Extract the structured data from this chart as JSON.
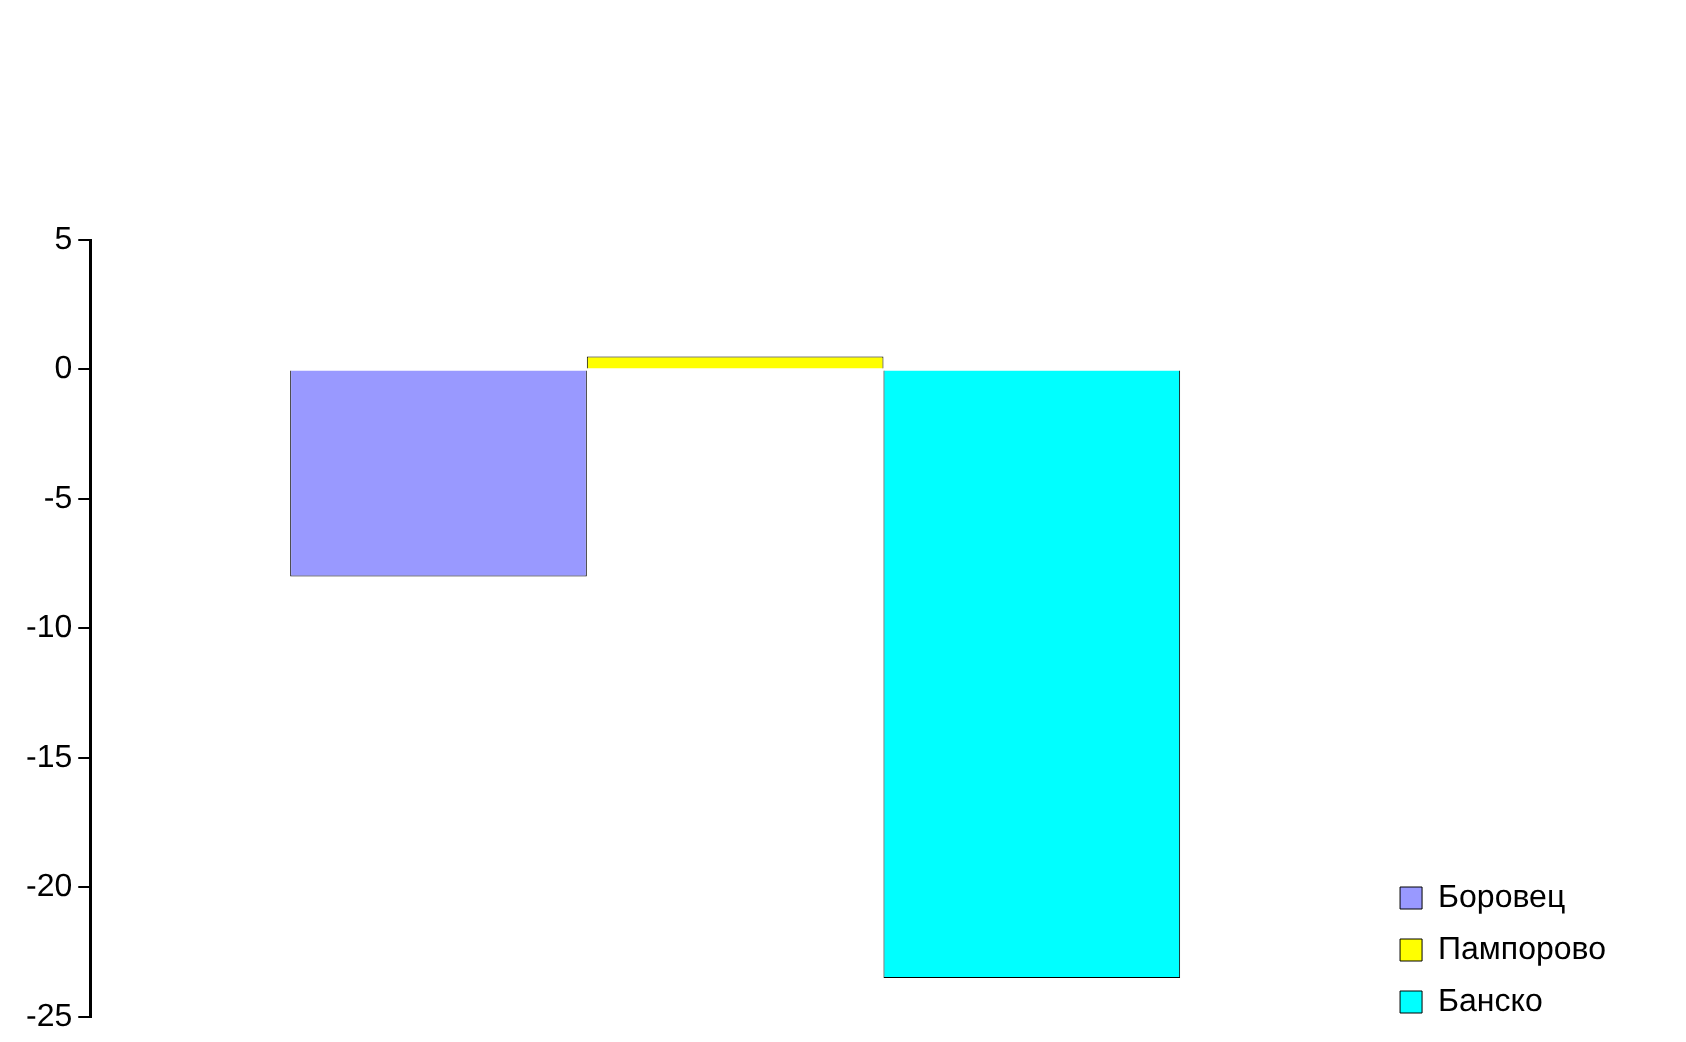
{
  "chart_data": {
    "type": "bar",
    "categories": [
      null
    ],
    "series": [
      {
        "name": "Боровец",
        "color": "#9999ff",
        "values": [
          -8
        ]
      },
      {
        "name": "Пампорово",
        "color": "#ffff00",
        "values": [
          0.5
        ]
      },
      {
        "name": "Банско",
        "color": "#00ffff",
        "values": [
          -23.5
        ]
      }
    ],
    "ylim": [
      -25,
      5
    ],
    "yticks": [
      -25,
      -20,
      -15,
      -10,
      -5,
      0,
      5
    ],
    "grid": false,
    "legend": "bottom right"
  }
}
